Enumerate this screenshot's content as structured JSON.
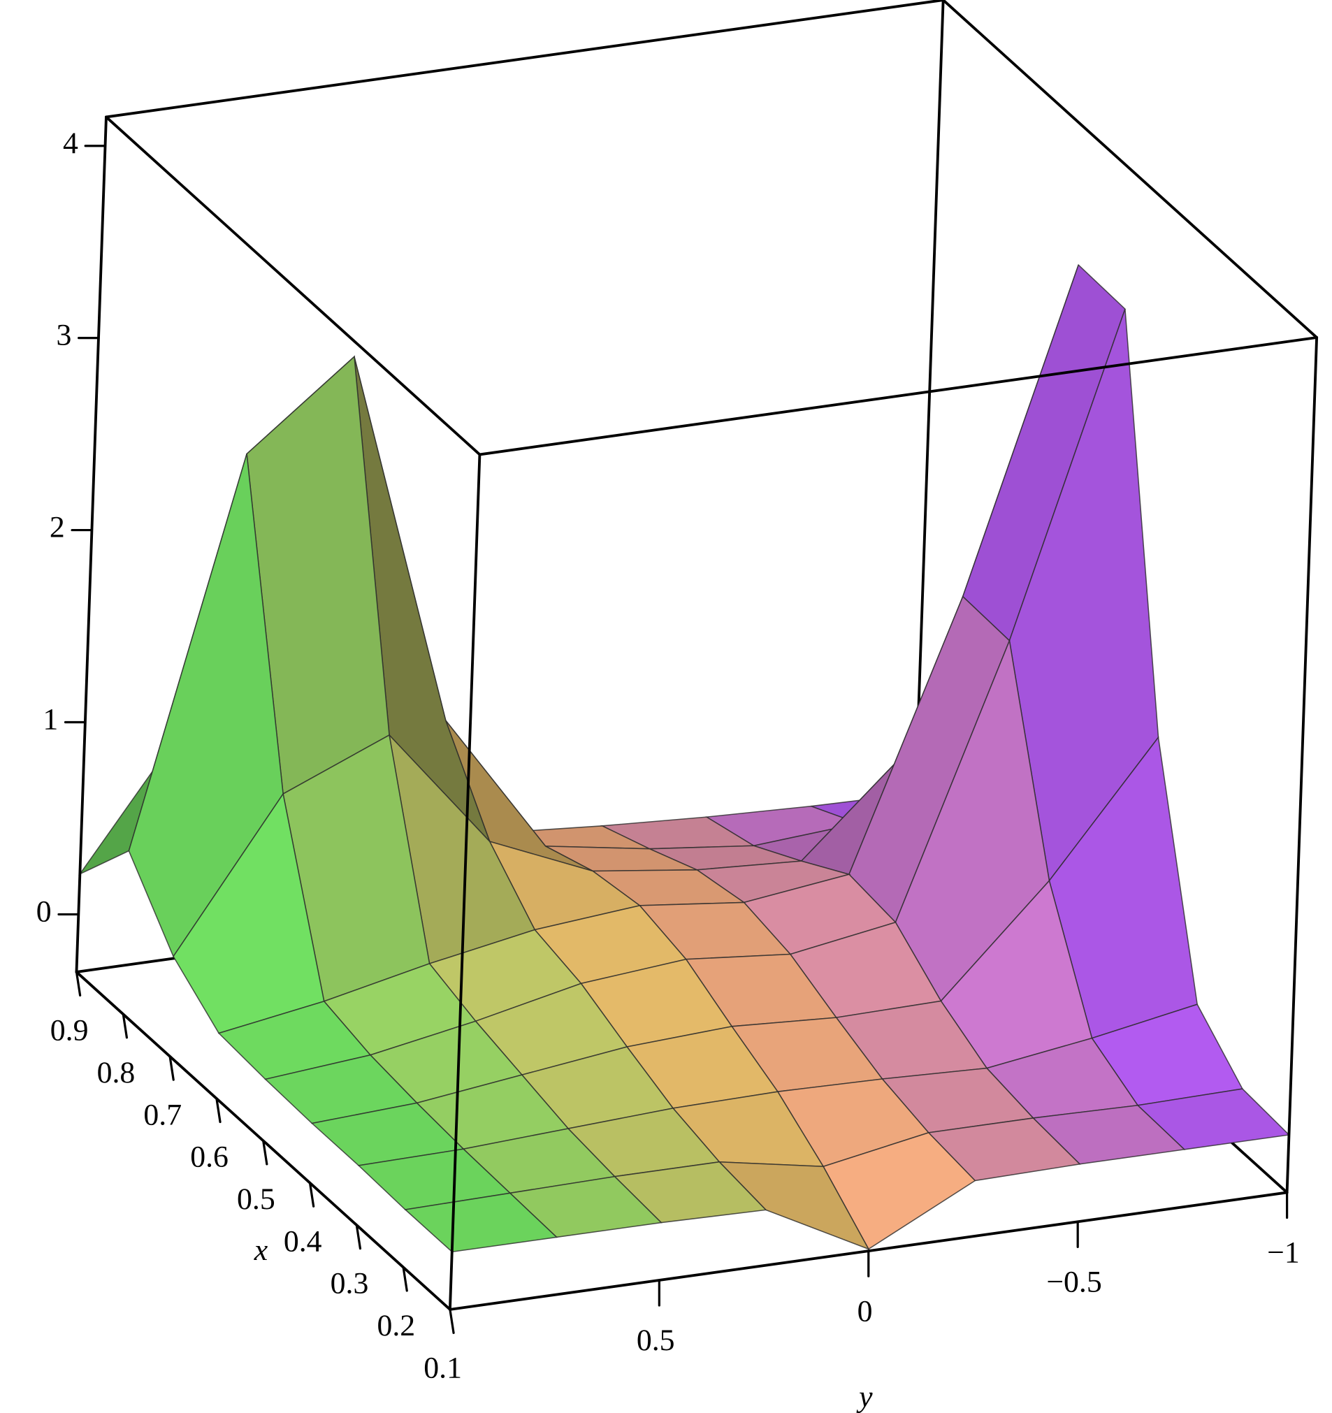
{
  "chart_data": {
    "type": "surface",
    "xlabel": "x",
    "ylabel": "y",
    "x": [
      0.1,
      0.2,
      0.3,
      0.4,
      0.5,
      0.6,
      0.7,
      0.8,
      0.9
    ],
    "y": [
      -1,
      -0.75,
      -0.5,
      -0.25,
      0,
      0.25,
      0.5,
      0.75,
      1
    ],
    "z": [
      [
        0,
        0,
        0,
        -0.01,
        -0.29,
        -0.01,
        0,
        0,
        0
      ],
      [
        0.02,
        0.01,
        0.02,
        0.02,
        -0.08,
        0.02,
        0.02,
        0.01,
        0
      ],
      [
        0.24,
        0.14,
        0.06,
        0.08,
        0.09,
        0.08,
        0.05,
        0.02,
        0.01
      ],
      [
        1.41,
        0.74,
        0.19,
        0.18,
        0.21,
        0.18,
        0.11,
        0.04,
        0.01
      ],
      [
        3.42,
        1.77,
        0.38,
        0.29,
        0.34,
        0.29,
        0.17,
        0.07,
        0.02
      ],
      [
        3.43,
        1.78,
        0.41,
        0.34,
        0.4,
        0.35,
        0.25,
        0.13,
        0.04
      ],
      [
        1.42,
        0.77,
        0.26,
        0.29,
        0.36,
        0.59,
        1.22,
        0.99,
        0.22
      ],
      [
        0.25,
        0.16,
        0.12,
        0.18,
        0.27,
        1.0,
        2.97,
        2.54,
        0.55
      ],
      [
        0.02,
        0.03,
        0.05,
        0.08,
        0.12,
        0.38,
        1.1,
        0.94,
        0.21
      ]
    ],
    "xlim": [
      0.1,
      0.9
    ],
    "ylim": [
      -1,
      1
    ],
    "zlim": [
      -0.3,
      4.15
    ],
    "xticks": [
      0.1,
      0.2,
      0.3,
      0.4,
      0.5,
      0.6,
      0.7,
      0.8,
      0.9
    ],
    "yticks": [
      0.5,
      0,
      {
        "value": -0.5,
        "label": "−0.5"
      },
      {
        "value": -1,
        "label": "−1"
      }
    ],
    "zticks": [
      0,
      1,
      2,
      3,
      4
    ],
    "colorscale": [
      "#5be05e",
      "#f7b46a",
      "#a64dff"
    ],
    "mesh_color": "#2a2a2a",
    "box_color": "#000000"
  }
}
